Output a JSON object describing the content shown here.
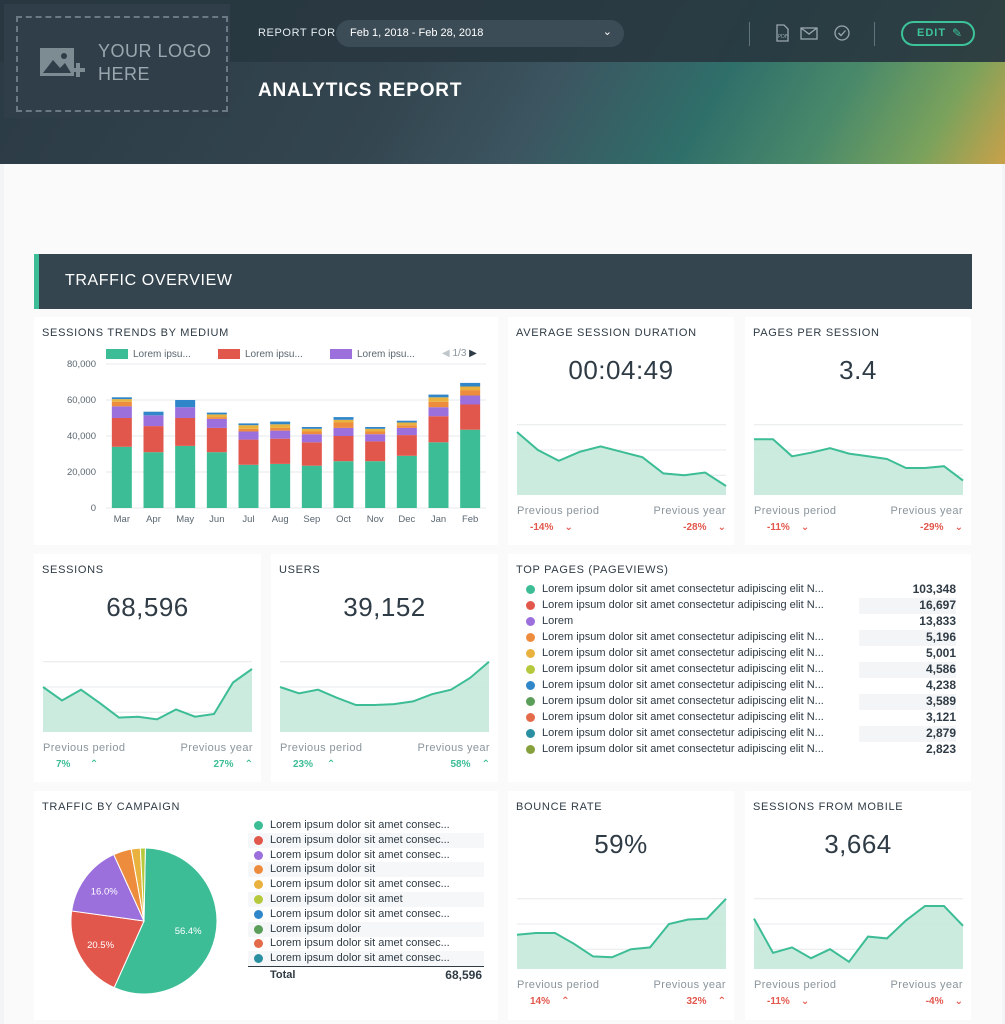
{
  "header": {
    "logo_line1": "YOUR LOGO",
    "logo_line2": "HERE",
    "report_for_label": "REPORT FOR",
    "date_range": "Feb 1, 2018 - Feb 28, 2018",
    "edit_label": "EDIT",
    "title": "ANALYTICS REPORT",
    "icons": [
      "pdf-icon",
      "mail-icon",
      "check-circle-icon",
      "pencil-icon"
    ]
  },
  "colors": {
    "accent": "#3cbd95",
    "negative": "#e2574c",
    "header_bg": "#34454f",
    "area_fill": "#c6e9dc",
    "area_line": "#3cbd95"
  },
  "section": {
    "title": "TRAFFIC OVERVIEW"
  },
  "sessions_trends": {
    "title": "SESSIONS TRENDS BY MEDIUM",
    "legend": [
      {
        "label": "Lorem ipsu...",
        "color": "#3cbd95"
      },
      {
        "label": "Lorem ipsu...",
        "color": "#e2574c"
      },
      {
        "label": "Lorem ipsu...",
        "color": "#9b6fdc"
      }
    ],
    "pager": "1/3"
  },
  "chart_data": [
    {
      "type": "bar",
      "stacked": true,
      "categories": [
        "Mar",
        "Apr",
        "May",
        "Jun",
        "Jul",
        "Aug",
        "Sep",
        "Oct",
        "Nov",
        "Dec",
        "Jan",
        "Feb"
      ],
      "yticks": [
        "80,000",
        "60,000",
        "40,000",
        "20,000",
        "0"
      ],
      "ylim": [
        0,
        80000
      ],
      "grid": true,
      "legend_position": "top",
      "series": [
        {
          "name": "Lorem ipsu...",
          "color": "#3cbd95",
          "values": [
            34000,
            31000,
            34500,
            31000,
            24000,
            24500,
            23500,
            26000,
            26000,
            29000,
            36500,
            43500
          ]
        },
        {
          "name": "Lorem ipsu...",
          "color": "#e2574c",
          "values": [
            16000,
            14500,
            15500,
            13500,
            14000,
            14000,
            13000,
            14000,
            11000,
            11500,
            14500,
            14000
          ]
        },
        {
          "name": "Lorem ipsu...",
          "color": "#9b6fdc",
          "values": [
            6500,
            6000,
            6000,
            5000,
            4500,
            4500,
            4500,
            4500,
            4000,
            4000,
            5000,
            5000
          ]
        },
        {
          "color": "#ee8c3e",
          "values": [
            2500,
            0,
            0,
            1000,
            1500,
            1500,
            1500,
            3000,
            1500,
            1500,
            3000,
            3000
          ]
        },
        {
          "color": "#e9b23f",
          "values": [
            1500,
            0,
            0,
            1500,
            2000,
            2000,
            1500,
            1500,
            1500,
            1500,
            2500,
            2000
          ]
        },
        {
          "color": "#2f86c8",
          "values": [
            1000,
            2000,
            4000,
            1000,
            1000,
            1500,
            1000,
            1500,
            1000,
            1000,
            1500,
            2000
          ]
        }
      ]
    },
    {
      "type": "pie",
      "title": "TRAFFIC BY CAMPAIGN",
      "slices": [
        {
          "label": "Lorem ipsum dolor sit amet consec...",
          "value": 56.4,
          "color": "#3cbd95"
        },
        {
          "label": "Lorem ipsum dolor sit amet consec...",
          "value": 20.5,
          "color": "#e2574c"
        },
        {
          "label": "Lorem ipsum dolor sit amet consec...",
          "value": 16.0,
          "color": "#9b6fdc"
        },
        {
          "label": "Lorem ipsum dolor sit",
          "value": 4.0,
          "color": "#ee8c3e"
        },
        {
          "label": "Lorem ipsum dolor sit amet consec...",
          "value": 2.0,
          "color": "#e9b23f"
        },
        {
          "label": "Lorem ipsum dolor sit amet",
          "value": 1.1,
          "color": "#b6c93c"
        }
      ],
      "slice_labels": [
        "56.4%",
        "20.5%",
        "16.0%"
      ]
    }
  ],
  "kpis": {
    "avg_session": {
      "title": "AVERAGE SESSION DURATION",
      "value": "00:04:49",
      "prev_period_label": "Previous period",
      "prev_period": "-14%",
      "prev_year_label": "Previous year",
      "prev_year": "-28%",
      "trend": [
        70,
        50,
        38,
        48,
        54,
        48,
        42,
        24,
        22,
        25,
        10
      ]
    },
    "pages_per_session": {
      "title": "PAGES PER SESSION",
      "value": "3.4",
      "prev_period_label": "Previous period",
      "prev_period": "-11%",
      "prev_year_label": "Previous year",
      "prev_year": "-29%",
      "trend": [
        62,
        62,
        43,
        47,
        52,
        46,
        43,
        40,
        30,
        30,
        32,
        16
      ]
    },
    "sessions": {
      "title": "SESSIONS",
      "value": "68,596",
      "prev_period_label": "Previous period",
      "prev_period": "7%",
      "prev_year_label": "Previous year",
      "prev_year": "27%",
      "trend": [
        50,
        35,
        47,
        32,
        16,
        17,
        14,
        25,
        17,
        20,
        55,
        70
      ]
    },
    "users": {
      "title": "USERS",
      "value": "39,152",
      "prev_period_label": "Previous period",
      "prev_period": "23%",
      "prev_year_label": "Previous year",
      "prev_year": "58%",
      "trend": [
        50,
        43,
        47,
        38,
        30,
        30,
        31,
        34,
        42,
        47,
        60,
        78
      ]
    },
    "bounce_rate": {
      "title": "BOUNCE RATE",
      "value": "59%",
      "prev_period_label": "Previous period",
      "prev_period": "14%",
      "prev_year_label": "Previous year",
      "prev_year": "32%",
      "trend": [
        38,
        40,
        40,
        28,
        14,
        13,
        22,
        24,
        50,
        55,
        56,
        78
      ]
    },
    "sessions_mobile": {
      "title": "SESSIONS FROM MOBILE",
      "value": "3,664",
      "prev_period_label": "Previous period",
      "prev_period": "-11%",
      "prev_year_label": "Previous year",
      "prev_year": "-4%",
      "trend": [
        56,
        18,
        24,
        12,
        22,
        8,
        36,
        34,
        54,
        70,
        70,
        48
      ]
    }
  },
  "top_pages": {
    "title": "TOP PAGES (PAGEVIEWS)",
    "rows": [
      {
        "label": "Lorem ipsum dolor sit amet consectetur adipiscing elit N...",
        "value": "103,348",
        "color": "#3cbd95"
      },
      {
        "label": "Lorem ipsum dolor sit amet consectetur adipiscing elit N...",
        "value": "16,697",
        "color": "#e2574c"
      },
      {
        "label": "Lorem",
        "value": "13,833",
        "color": "#9b6fdc"
      },
      {
        "label": "Lorem ipsum dolor sit amet consectetur adipiscing elit N...",
        "value": "5,196",
        "color": "#ee8c3e"
      },
      {
        "label": "Lorem ipsum dolor sit amet consectetur adipiscing elit N...",
        "value": "5,001",
        "color": "#e9b23f"
      },
      {
        "label": "Lorem ipsum dolor sit amet consectetur adipiscing elit N...",
        "value": "4,586",
        "color": "#b6c93c"
      },
      {
        "label": "Lorem ipsum dolor sit amet consectetur adipiscing elit N...",
        "value": "4,238",
        "color": "#2f86c8"
      },
      {
        "label": "Lorem ipsum dolor sit amet consectetur adipiscing elit N...",
        "value": "3,589",
        "color": "#5a9e5a"
      },
      {
        "label": "Lorem ipsum dolor sit amet consectetur adipiscing elit N...",
        "value": "3,121",
        "color": "#e46b4a"
      },
      {
        "label": "Lorem ipsum dolor sit amet consectetur adipiscing elit N...",
        "value": "2,879",
        "color": "#2a8fa0"
      },
      {
        "label": "Lorem ipsum dolor sit amet consectetur adipiscing elit N...",
        "value": "2,823",
        "color": "#86a03e"
      }
    ]
  },
  "campaign": {
    "title": "TRAFFIC BY CAMPAIGN",
    "rows": [
      {
        "label": "Lorem ipsum dolor sit amet consec...",
        "color": "#3cbd95"
      },
      {
        "label": "Lorem ipsum dolor sit amet consec...",
        "color": "#e2574c"
      },
      {
        "label": "Lorem ipsum dolor sit amet consec...",
        "color": "#9b6fdc"
      },
      {
        "label": "Lorem ipsum dolor sit",
        "color": "#ee8c3e"
      },
      {
        "label": "Lorem ipsum dolor sit amet consec...",
        "color": "#e9b23f"
      },
      {
        "label": "Lorem ipsum dolor sit amet",
        "color": "#b6c93c"
      },
      {
        "label": "Lorem ipsum dolor sit amet consec...",
        "color": "#2f86c8"
      },
      {
        "label": "Lorem ipsum dolor",
        "color": "#5a9e5a"
      },
      {
        "label": "Lorem ipsum dolor sit amet consec...",
        "color": "#e46b4a"
      },
      {
        "label": "Lorem ipsum dolor sit amet consec...",
        "color": "#2a8fa0"
      }
    ],
    "total_label": "Total",
    "total_value": "68,596"
  }
}
